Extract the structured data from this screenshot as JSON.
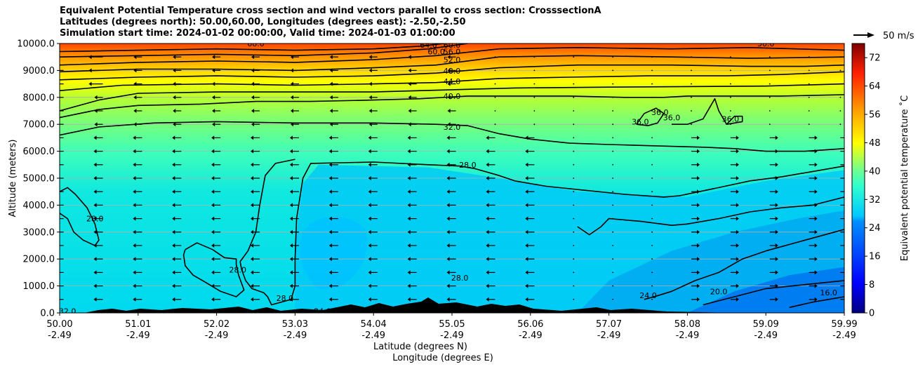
{
  "chart_data": {
    "type": "cross-section-contour",
    "title": [
      "Equivalent Potential Temperature cross section and wind vectors parallel to cross section: CrosssectionA",
      "Latitudes (degrees north): 50.00,60.00, Longitudes (degrees east): -2.50,-2.50",
      "Simulation start time: 2024-01-02 00:00:00, Valid time: 2024-01-03 01:00:00"
    ],
    "ylabel": "Altitude (meters)",
    "xlabel_lat": "Latitude (degrees N)",
    "xlabel_lon": "Longitude (degrees E)",
    "ylim": [
      0,
      10000
    ],
    "yticks": [
      "0.0",
      "1000.0",
      "2000.0",
      "3000.0",
      "4000.0",
      "5000.0",
      "6000.0",
      "7000.0",
      "8000.0",
      "9000.0",
      "10000.0"
    ],
    "yvalues": [
      0,
      1000,
      2000,
      3000,
      4000,
      5000,
      6000,
      7000,
      8000,
      9000,
      10000
    ],
    "xticks_lat": [
      "50.00",
      "51.01",
      "52.02",
      "53.03",
      "54.04",
      "55.05",
      "56.06",
      "57.07",
      "58.08",
      "59.09",
      "59.99"
    ],
    "xticks_lon": [
      "-2.49",
      "-2.49",
      "-2.49",
      "-2.49",
      "-2.49",
      "-2.49",
      "-2.49",
      "-2.49",
      "-2.49",
      "-2.49",
      "-2.49"
    ],
    "colorbar": {
      "label": "Equivalent potential temperature ˚C",
      "min": 0,
      "max": 76,
      "ticks": [
        "0",
        "8",
        "16",
        "24",
        "32",
        "40",
        "48",
        "56",
        "64",
        "72"
      ],
      "tick_values": [
        0,
        8,
        16,
        24,
        32,
        40,
        48,
        56,
        64,
        72
      ]
    },
    "wind_key": "50 m/s",
    "contour_labels": [
      {
        "text": "64.0",
        "x": 0.47,
        "y": 9950
      },
      {
        "text": "60.0",
        "x": 0.48,
        "y": 9700
      },
      {
        "text": "60.0",
        "x": 0.5,
        "y": 9950
      },
      {
        "text": "56.0",
        "x": 0.5,
        "y": 9700
      },
      {
        "text": "52.0",
        "x": 0.5,
        "y": 9400
      },
      {
        "text": "48.0",
        "x": 0.5,
        "y": 8980
      },
      {
        "text": "44.0",
        "x": 0.5,
        "y": 8600
      },
      {
        "text": "40.0",
        "x": 0.5,
        "y": 8050
      },
      {
        "text": "68.0",
        "x": 0.25,
        "y": 10000
      },
      {
        "text": "56.0",
        "x": 0.9,
        "y": 10000
      },
      {
        "text": "36.0",
        "x": 0.74,
        "y": 7100
      },
      {
        "text": "36.0",
        "x": 0.765,
        "y": 7450
      },
      {
        "text": "36.0",
        "x": 0.78,
        "y": 7250
      },
      {
        "text": "36.0",
        "x": 0.855,
        "y": 7200
      },
      {
        "text": "32.0",
        "x": 0.5,
        "y": 6900
      },
      {
        "text": "28.0",
        "x": 0.52,
        "y": 5500
      },
      {
        "text": "28.0",
        "x": 0.045,
        "y": 3500
      },
      {
        "text": "28.0",
        "x": 0.227,
        "y": 1600
      },
      {
        "text": "28.0",
        "x": 0.287,
        "y": 550
      },
      {
        "text": "28.0",
        "x": 0.51,
        "y": 1300
      },
      {
        "text": "24.0",
        "x": 0.335,
        "y": 60
      },
      {
        "text": "24.0",
        "x": 0.75,
        "y": 650
      },
      {
        "text": "20.0",
        "x": 0.84,
        "y": 800
      },
      {
        "text": "16.0",
        "x": 0.98,
        "y": 750
      },
      {
        "text": "32.0",
        "x": 0.01,
        "y": 60
      }
    ],
    "contours": [
      {
        "value": 28,
        "points": [
          [
            0,
            4500
          ],
          [
            0.01,
            4650
          ],
          [
            0.02,
            4400
          ],
          [
            0.035,
            3900
          ],
          [
            0.045,
            3300
          ],
          [
            0.05,
            2700
          ],
          [
            0.045,
            2500
          ],
          [
            0.03,
            2700
          ],
          [
            0.018,
            3000
          ],
          [
            0.01,
            3500
          ],
          [
            0,
            3700
          ]
        ]
      },
      {
        "value": 28,
        "points": [
          [
            0.16,
            2350
          ],
          [
            0.175,
            2600
          ],
          [
            0.195,
            2350
          ],
          [
            0.21,
            2050
          ],
          [
            0.225,
            2000
          ],
          [
            0.225,
            1800
          ],
          [
            0.228,
            1400
          ],
          [
            0.235,
            850
          ],
          [
            0.225,
            600
          ],
          [
            0.205,
            800
          ],
          [
            0.185,
            1150
          ],
          [
            0.17,
            1400
          ],
          [
            0.16,
            1750
          ],
          [
            0.158,
            2150
          ],
          [
            0.16,
            2350
          ]
        ]
      },
      {
        "value": 28,
        "points": [
          [
            0.23,
            1900
          ],
          [
            0.232,
            1600
          ],
          [
            0.237,
            1200
          ],
          [
            0.245,
            900
          ],
          [
            0.26,
            750
          ],
          [
            0.265,
            600
          ],
          [
            0.27,
            300
          ],
          [
            0.295,
            500
          ],
          [
            0.3,
            1000
          ],
          [
            0.3,
            2000
          ],
          [
            0.302,
            3500
          ],
          [
            0.31,
            5000
          ],
          [
            0.32,
            5550
          ],
          [
            0.4,
            5600
          ],
          [
            0.47,
            5500
          ],
          [
            0.51,
            5450
          ],
          [
            0.53,
            5350
          ],
          [
            0.56,
            5100
          ],
          [
            0.58,
            4900
          ],
          [
            0.62,
            4700
          ],
          [
            0.67,
            4550
          ],
          [
            0.72,
            4400
          ],
          [
            0.77,
            4300
          ],
          [
            0.79,
            4350
          ],
          [
            0.815,
            4500
          ],
          [
            0.84,
            4650
          ],
          [
            0.88,
            4900
          ],
          [
            0.92,
            5050
          ],
          [
            0.96,
            5250
          ],
          [
            1.0,
            5450
          ]
        ]
      },
      {
        "value": 28,
        "points": [
          [
            0.23,
            1900
          ],
          [
            0.24,
            2300
          ],
          [
            0.25,
            3000
          ],
          [
            0.255,
            4000
          ],
          [
            0.262,
            5100
          ],
          [
            0.275,
            5550
          ],
          [
            0.3,
            5700
          ]
        ]
      },
      {
        "value": 24,
        "points": [
          [
            0.745,
            500
          ],
          [
            0.76,
            620
          ],
          [
            0.78,
            800
          ],
          [
            0.81,
            1200
          ],
          [
            0.84,
            1500
          ],
          [
            0.87,
            2000
          ],
          [
            0.9,
            2300
          ],
          [
            0.95,
            2700
          ],
          [
            1.0,
            3100
          ]
        ]
      },
      {
        "value": 28,
        "points": [
          [
            0.66,
            3200
          ],
          [
            0.675,
            2900
          ],
          [
            0.69,
            3200
          ],
          [
            0.7,
            3500
          ],
          [
            0.74,
            3400
          ],
          [
            0.78,
            3250
          ],
          [
            0.8,
            3300
          ],
          [
            0.84,
            3500
          ],
          [
            0.88,
            3750
          ],
          [
            0.92,
            3900
          ],
          [
            0.96,
            4000
          ],
          [
            1.0,
            4300
          ]
        ]
      },
      {
        "value": 20,
        "points": [
          [
            0.82,
            300
          ],
          [
            0.86,
            600
          ],
          [
            0.9,
            900
          ],
          [
            0.95,
            1050
          ],
          [
            1.0,
            1200
          ]
        ]
      },
      {
        "value": 16,
        "points": [
          [
            0.93,
            200
          ],
          [
            0.96,
            400
          ],
          [
            0.98,
            500
          ],
          [
            1.0,
            600
          ]
        ]
      },
      {
        "value": 32,
        "points": [
          [
            0,
            6600
          ],
          [
            0.05,
            6900
          ],
          [
            0.12,
            7050
          ],
          [
            0.2,
            7100
          ],
          [
            0.3,
            7050
          ],
          [
            0.4,
            7050
          ],
          [
            0.48,
            7000
          ],
          [
            0.52,
            6950
          ],
          [
            0.56,
            6650
          ],
          [
            0.6,
            6450
          ],
          [
            0.65,
            6300
          ],
          [
            0.7,
            6250
          ],
          [
            0.76,
            6200
          ],
          [
            0.82,
            6150
          ],
          [
            0.86,
            6100
          ],
          [
            0.9,
            6000
          ],
          [
            0.95,
            6000
          ],
          [
            1.0,
            6100
          ]
        ]
      },
      {
        "value": 36,
        "points": [
          [
            0,
            7250
          ],
          [
            0.05,
            7550
          ],
          [
            0.1,
            7700
          ],
          [
            0.18,
            7750
          ],
          [
            0.25,
            7850
          ],
          [
            0.32,
            7850
          ],
          [
            0.4,
            7900
          ],
          [
            0.46,
            7950
          ],
          [
            0.52,
            8050
          ],
          [
            0.58,
            8050
          ],
          [
            0.65,
            8050
          ],
          [
            0.72,
            8000
          ],
          [
            0.77,
            8000
          ],
          [
            0.8,
            8050
          ],
          [
            0.86,
            8050
          ],
          [
            0.92,
            8050
          ],
          [
            0.97,
            8080
          ],
          [
            1.0,
            8100
          ]
        ]
      },
      {
        "value": 40,
        "points": [
          [
            0,
            7500
          ],
          [
            0.05,
            7900
          ],
          [
            0.1,
            8150
          ],
          [
            0.2,
            8200
          ],
          [
            0.3,
            8200
          ],
          [
            0.4,
            8200
          ],
          [
            0.46,
            8250
          ],
          [
            0.52,
            8300
          ],
          [
            0.58,
            8350
          ],
          [
            0.7,
            8380
          ],
          [
            0.8,
            8400
          ],
          [
            0.9,
            8420
          ],
          [
            1.0,
            8500
          ]
        ]
      },
      {
        "value": 44,
        "points": [
          [
            0,
            8250
          ],
          [
            0.08,
            8450
          ],
          [
            0.2,
            8500
          ],
          [
            0.3,
            8450
          ],
          [
            0.4,
            8500
          ],
          [
            0.48,
            8550
          ],
          [
            0.56,
            8700
          ],
          [
            0.65,
            8750
          ],
          [
            0.75,
            8800
          ],
          [
            0.85,
            8800
          ],
          [
            0.92,
            8850
          ],
          [
            1.0,
            8950
          ]
        ]
      },
      {
        "value": 48,
        "points": [
          [
            0,
            8650
          ],
          [
            0.1,
            8750
          ],
          [
            0.2,
            8800
          ],
          [
            0.3,
            8750
          ],
          [
            0.4,
            8800
          ],
          [
            0.48,
            8900
          ],
          [
            0.56,
            9100
          ],
          [
            0.66,
            9200
          ],
          [
            0.78,
            9200
          ],
          [
            0.88,
            9150
          ],
          [
            0.95,
            9150
          ],
          [
            1.0,
            9200
          ]
        ]
      },
      {
        "value": 52,
        "points": [
          [
            0,
            8950
          ],
          [
            0.1,
            9050
          ],
          [
            0.2,
            9050
          ],
          [
            0.3,
            9000
          ],
          [
            0.4,
            9100
          ],
          [
            0.48,
            9200
          ],
          [
            0.56,
            9500
          ],
          [
            0.66,
            9550
          ],
          [
            0.78,
            9500
          ],
          [
            0.88,
            9450
          ],
          [
            1.0,
            9500
          ]
        ]
      },
      {
        "value": 56,
        "points": [
          [
            0,
            9200
          ],
          [
            0.1,
            9300
          ],
          [
            0.2,
            9350
          ],
          [
            0.3,
            9300
          ],
          [
            0.4,
            9400
          ],
          [
            0.48,
            9550
          ],
          [
            0.56,
            9800
          ],
          [
            0.66,
            9850
          ],
          [
            0.78,
            9800
          ],
          [
            0.88,
            9850
          ],
          [
            1.0,
            9750
          ]
        ]
      },
      {
        "value": 60,
        "points": [
          [
            0,
            9500
          ],
          [
            0.1,
            9550
          ],
          [
            0.2,
            9600
          ],
          [
            0.3,
            9550
          ],
          [
            0.4,
            9650
          ],
          [
            0.47,
            9800
          ],
          [
            0.52,
            10000
          ]
        ]
      },
      {
        "value": 64,
        "points": [
          [
            0,
            9700
          ],
          [
            0.1,
            9750
          ],
          [
            0.2,
            9800
          ],
          [
            0.3,
            9750
          ],
          [
            0.4,
            9800
          ],
          [
            0.46,
            9900
          ],
          [
            0.49,
            10000
          ]
        ]
      }
    ],
    "islands": [
      {
        "value": 36,
        "points": [
          [
            0.735,
            7000
          ],
          [
            0.745,
            7400
          ],
          [
            0.76,
            7600
          ],
          [
            0.77,
            7400
          ],
          [
            0.762,
            7050
          ],
          [
            0.75,
            6950
          ],
          [
            0.735,
            7000
          ]
        ]
      },
      {
        "value": 36,
        "points": [
          [
            0.78,
            7000
          ],
          [
            0.8,
            7000
          ],
          [
            0.82,
            7200
          ],
          [
            0.83,
            7700
          ],
          [
            0.835,
            7950
          ],
          [
            0.84,
            7500
          ],
          [
            0.85,
            7000
          ],
          [
            0.87,
            7100
          ],
          [
            0.87,
            7300
          ],
          [
            0.86,
            7300
          ],
          [
            0.85,
            7000
          ]
        ]
      }
    ],
    "wind_arrow_rows": [
      500,
      1000,
      1500,
      2000,
      2500,
      3000,
      3500,
      4000,
      4500,
      5000,
      5500,
      6000,
      6500,
      7000,
      7500,
      8000,
      8500,
      9000,
      9500
    ],
    "wind_arrow_cols": [
      0.005,
      0.055,
      0.105,
      0.155,
      0.205,
      0.255,
      0.305,
      0.355,
      0.405,
      0.455,
      0.505,
      0.555,
      0.605,
      0.655,
      0.705,
      0.755,
      0.805,
      0.855,
      0.905,
      0.955,
      0.995
    ]
  }
}
